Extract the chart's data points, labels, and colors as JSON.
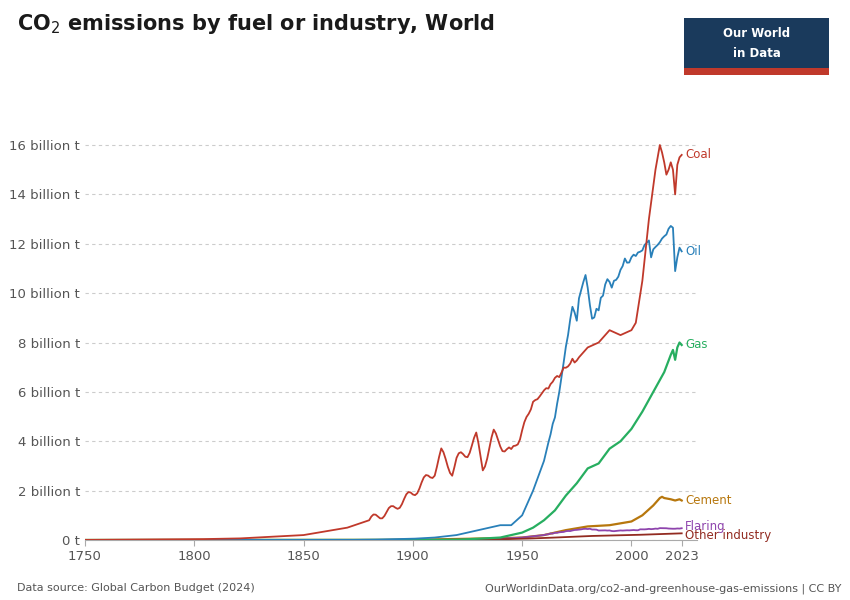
{
  "title": "CO$_2$ emissions by fuel or industry, World",
  "source_text": "Data source: Global Carbon Budget (2024)",
  "url_text": "OurWorldinData.org/co2-and-greenhouse-gas-emissions | CC BY",
  "ylabel_ticks": [
    "0 t",
    "2 billion t",
    "4 billion t",
    "6 billion t",
    "8 billion t",
    "10 billion t",
    "12 billion t",
    "14 billion t",
    "16 billion t"
  ],
  "ytick_values": [
    0,
    2000000000,
    4000000000,
    6000000000,
    8000000000,
    10000000000,
    12000000000,
    14000000000,
    16000000000
  ],
  "ylim": [
    0,
    17500000000
  ],
  "xlim": [
    1750,
    2030
  ],
  "xticks": [
    1750,
    1800,
    1850,
    1900,
    1950,
    2000,
    2023
  ],
  "colors": {
    "Coal": "#c0392b",
    "Oil": "#2980b9",
    "Gas": "#27ae60",
    "Cement": "#b7770d",
    "Flaring": "#8e44ad",
    "Other industry": "#922b21"
  },
  "background": "#ffffff",
  "grid_color": "#cccccc",
  "logo_bg": "#1a3a5c",
  "logo_red": "#c0392b"
}
